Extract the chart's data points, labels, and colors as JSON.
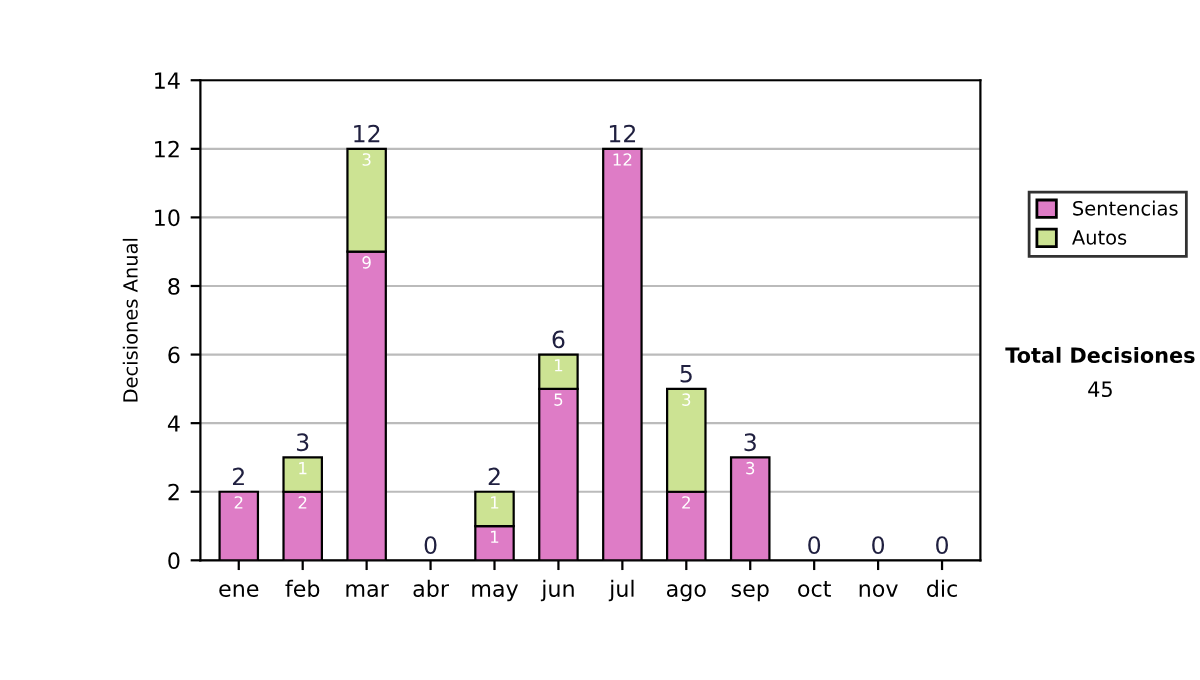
{
  "chart_data": {
    "type": "bar",
    "stacked": true,
    "ylabel": "Decisiones Anual",
    "categories": [
      "ene",
      "feb",
      "mar",
      "abr",
      "may",
      "jun",
      "jul",
      "ago",
      "sep",
      "oct",
      "nov",
      "dic"
    ],
    "series": [
      {
        "name": "Sentencias",
        "color": "#de7cc6",
        "values": [
          2,
          2,
          9,
          0,
          1,
          5,
          12,
          2,
          3,
          0,
          0,
          0
        ],
        "value_labels": [
          "2",
          "2",
          "9",
          null,
          "1",
          "5",
          "12",
          "2",
          "3",
          null,
          null,
          null
        ]
      },
      {
        "name": "Autos",
        "color": "#cce393",
        "values": [
          0,
          1,
          3,
          0,
          1,
          1,
          0,
          3,
          0,
          0,
          0,
          0
        ],
        "value_labels": [
          null,
          "1",
          "3",
          null,
          "1",
          "1",
          null,
          "3",
          null,
          null,
          null,
          null
        ]
      }
    ],
    "totals": [
      "2",
      "3",
      "12",
      "0",
      "2",
      "6",
      "12",
      "5",
      "3",
      "0",
      "0",
      "0"
    ],
    "ylim": [
      0,
      14
    ],
    "yticks": [
      0,
      2,
      4,
      6,
      8,
      10,
      12,
      14
    ],
    "grid": "y",
    "legend": "right",
    "annotations": [
      "Total Decisiones",
      "45"
    ]
  }
}
